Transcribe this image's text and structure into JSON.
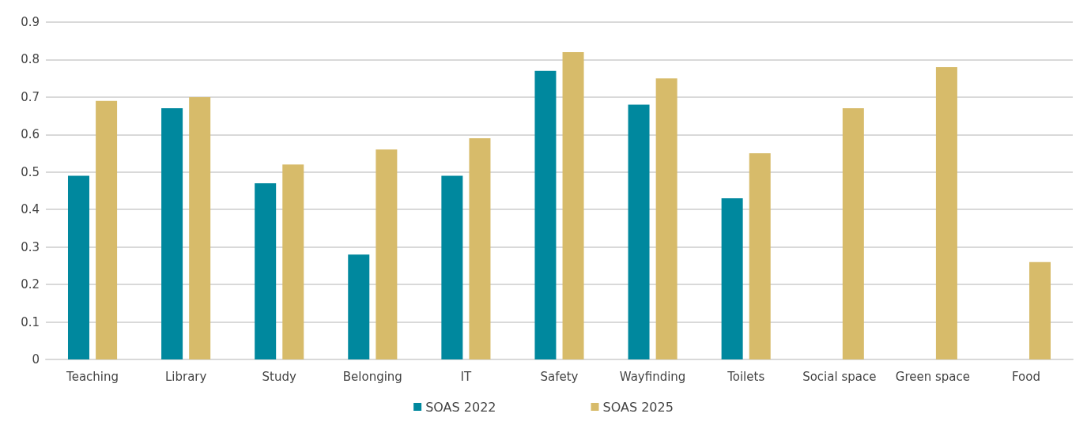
{
  "chart_data": {
    "type": "bar",
    "categories": [
      "Teaching",
      "Library",
      "Study",
      "Belonging",
      "IT",
      "Safety",
      "Wayfinding",
      "Toilets",
      "Social space",
      "Green space",
      "Food"
    ],
    "series": [
      {
        "name": "SOAS 2022",
        "color": "#00889e",
        "values": [
          0.49,
          0.67,
          0.47,
          0.28,
          0.49,
          0.77,
          0.68,
          0.43,
          null,
          null,
          null
        ]
      },
      {
        "name": "SOAS 2025",
        "color": "#d7bb6a",
        "values": [
          0.69,
          0.7,
          0.52,
          0.56,
          0.59,
          0.82,
          0.75,
          0.55,
          0.67,
          0.78,
          0.26
        ]
      }
    ],
    "ylim": [
      0,
      0.9
    ],
    "yticks": [
      0,
      0.1,
      0.2,
      0.3,
      0.4,
      0.5,
      0.6,
      0.7,
      0.8,
      0.9
    ],
    "grid": "y",
    "legend": "bottom"
  }
}
